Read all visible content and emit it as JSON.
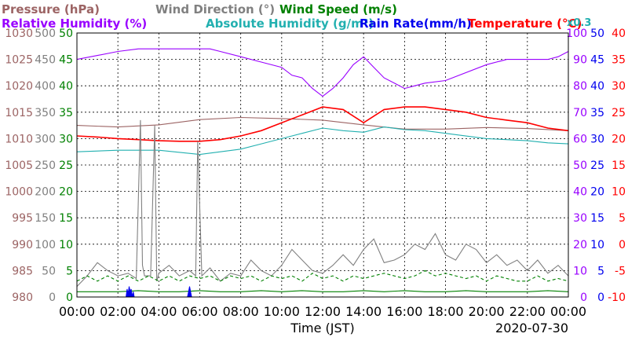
{
  "chart_data": {
    "type": "line",
    "date_label": "2020-07-30",
    "xlabel": "Time (JST)",
    "x_ticks": [
      "00:00",
      "02:00",
      "04:00",
      "06:00",
      "08:00",
      "10:00",
      "12:00",
      "14:00",
      "16:00",
      "18:00",
      "20:00",
      "22:00",
      "00:00"
    ],
    "axes": {
      "pressure": {
        "label": "Pressure (hPa)",
        "color": "#9c6464",
        "range": [
          980,
          1030
        ],
        "ticks": [
          "980",
          "985",
          "990",
          "995",
          "1000",
          "1005",
          "1010",
          "1015",
          "1020",
          "1025",
          "1030"
        ]
      },
      "wind_dir": {
        "label": "Wind Direction (°)",
        "color": "#808080",
        "range": [
          0,
          500
        ],
        "ticks": [
          "0",
          "50",
          "100",
          "150",
          "200",
          "250",
          "300",
          "350",
          "400",
          "450",
          "500"
        ]
      },
      "wind_speed": {
        "label": "Wind Speed (m/s)",
        "color": "#008000",
        "range": [
          0,
          50
        ],
        "ticks": [
          "0",
          "5",
          "10",
          "15",
          "20",
          "25",
          "30",
          "35",
          "40",
          "45",
          "50"
        ]
      },
      "humidity": {
        "label": "Relative Humidity (%)",
        "color": "#9900ff",
        "range": [
          0,
          100
        ],
        "ticks": [
          "0",
          "10",
          "20",
          "30",
          "40",
          "50",
          "60",
          "70",
          "80",
          "90",
          "100"
        ]
      },
      "abs_humidity": {
        "label": "Absolute Humidity (g/m³)",
        "color": "#22b0b0",
        "scale_note": "x0.3",
        "range": [
          0,
          50
        ]
      },
      "rain_rate": {
        "label": "Rain Rate(mm/h)",
        "color": "#0000ee",
        "range": [
          0,
          50
        ],
        "ticks": [
          "0",
          "5",
          "10",
          "15",
          "20",
          "25",
          "30",
          "35",
          "40",
          "45",
          "50"
        ]
      },
      "temperature": {
        "label": "Temperature (°C)",
        "color": "#ff0000",
        "range": [
          -10,
          40
        ],
        "ticks": [
          "-10",
          "-5",
          "0",
          "5",
          "10",
          "15",
          "20",
          "25",
          "30",
          "35",
          "40"
        ]
      }
    },
    "grid": true,
    "series": [
      {
        "name": "Pressure (hPa)",
        "axis": "pressure",
        "x": [
          0,
          2,
          4,
          6,
          8,
          10,
          12,
          14,
          16,
          18,
          20,
          22,
          24
        ],
        "y": [
          1012.5,
          1012.2,
          1012.6,
          1013.6,
          1014.0,
          1013.8,
          1013.5,
          1012.6,
          1011.8,
          1011.8,
          1012.1,
          1011.9,
          1011.5
        ]
      },
      {
        "name": "Relative Humidity (%)",
        "axis": "humidity",
        "x": [
          0,
          1,
          2,
          3,
          4,
          5,
          6,
          6.5,
          7,
          8,
          9,
          10,
          10.5,
          11,
          11.5,
          12,
          12.5,
          13,
          13.5,
          14,
          14.5,
          15,
          15.5,
          16,
          16.5,
          17,
          18,
          20,
          21,
          22,
          23,
          23.5,
          24
        ],
        "y": [
          90,
          91.5,
          93,
          94,
          94,
          94,
          94,
          94,
          93,
          91,
          89,
          87,
          84,
          83,
          79,
          76,
          79,
          83,
          88,
          91,
          87,
          83,
          81,
          79,
          80,
          81,
          82,
          88,
          90,
          90,
          90,
          91,
          93
        ]
      },
      {
        "name": "Temperature (°C)",
        "axis": "temperature",
        "x": [
          0,
          1,
          2,
          3,
          4,
          5,
          6,
          7,
          8,
          9,
          10,
          11,
          12,
          13,
          14,
          15,
          16,
          17,
          18,
          19,
          20,
          21,
          22,
          23,
          24
        ],
        "y": [
          20.5,
          20.3,
          20.0,
          19.8,
          19.6,
          19.5,
          19.5,
          19.8,
          20.5,
          21.5,
          23.0,
          24.5,
          26.0,
          25.5,
          23.0,
          25.5,
          26.0,
          26.0,
          25.5,
          25.0,
          24.0,
          23.5,
          23.0,
          22.0,
          21.5
        ]
      },
      {
        "name": "Absolute Humidity (g/m³)",
        "axis": "abs_humidity",
        "x": [
          0,
          2,
          4,
          6,
          7,
          8,
          9,
          10,
          11,
          12,
          13,
          14,
          15,
          16,
          17,
          18,
          20,
          22,
          23,
          24
        ],
        "y": [
          27.5,
          27.8,
          27.8,
          27.0,
          27.5,
          28.0,
          29.0,
          30.0,
          31.0,
          32.0,
          31.5,
          31.2,
          32.2,
          31.7,
          31.5,
          31.0,
          30.0,
          29.6,
          29.2,
          29.0
        ]
      },
      {
        "name": "Wind Direction (°)",
        "axis": "wind_dir",
        "x": [
          0,
          0.5,
          1,
          1.5,
          2,
          2.5,
          2.9,
          3.1,
          3.2,
          3.3,
          3.6,
          3.8,
          3.9,
          4.0,
          4.5,
          5,
          5.5,
          5.8,
          5.9,
          6.1,
          6.5,
          7,
          7.5,
          8,
          8.5,
          9,
          9.5,
          10,
          10.5,
          11,
          11.5,
          12,
          12.5,
          13,
          13.5,
          14,
          14.5,
          15,
          15.5,
          16,
          16.5,
          17,
          17.5,
          18,
          18.5,
          19,
          19.5,
          20,
          20.5,
          21,
          21.5,
          22,
          22.5,
          23,
          23.5,
          24
        ],
        "y": [
          20,
          40,
          65,
          50,
          40,
          45,
          35,
          335,
          60,
          40,
          40,
          325,
          30,
          45,
          60,
          40,
          50,
          40,
          295,
          40,
          55,
          30,
          45,
          40,
          70,
          50,
          40,
          60,
          90,
          70,
          50,
          45,
          60,
          80,
          60,
          90,
          110,
          65,
          70,
          80,
          100,
          90,
          120,
          80,
          70,
          100,
          90,
          65,
          80,
          60,
          70,
          50,
          70,
          45,
          60,
          40
        ]
      },
      {
        "name": "Wind Speed (m/s) max",
        "axis": "wind_speed",
        "x": [
          0,
          0.5,
          1,
          1.5,
          2,
          2.5,
          3,
          3.5,
          4,
          4.5,
          5,
          5.5,
          6,
          6.5,
          7,
          7.5,
          8,
          8.5,
          9,
          9.5,
          10,
          10.5,
          11,
          11.5,
          12,
          12.5,
          13,
          13.5,
          14,
          14.5,
          15,
          15.5,
          16,
          16.5,
          17,
          17.5,
          18,
          18.5,
          19,
          19.5,
          20,
          20.5,
          21,
          21.5,
          22,
          22.5,
          23,
          23.5,
          24
        ],
        "y": [
          3,
          4,
          3,
          4,
          3,
          4,
          3,
          4,
          3,
          4,
          3,
          4,
          3.5,
          4,
          3,
          4,
          3.5,
          4,
          3,
          4,
          3.5,
          4,
          3,
          4.5,
          3.5,
          4,
          3,
          4,
          3.5,
          4,
          4.5,
          4,
          3.5,
          4,
          5,
          4,
          4.5,
          4,
          3.5,
          4,
          3,
          4,
          3.5,
          3,
          3,
          4,
          3,
          3.5,
          3
        ]
      },
      {
        "name": "Wind Speed (m/s) avg",
        "axis": "wind_speed",
        "x": [
          0,
          1,
          2,
          3,
          4,
          5,
          6,
          7,
          8,
          9,
          10,
          11,
          12,
          13,
          14,
          15,
          16,
          17,
          18,
          19,
          20,
          21,
          22,
          23,
          24
        ],
        "y": [
          1,
          1,
          1,
          1.2,
          1,
          1,
          1.2,
          1,
          1,
          1.2,
          1,
          1.2,
          1,
          1,
          1.2,
          1,
          1.2,
          1,
          1,
          1.2,
          1,
          1,
          1,
          1.2,
          1
        ]
      },
      {
        "name": "Rain Rate(mm/h)",
        "axis": "rain_rate",
        "x": [
          2.4,
          2.45,
          2.5,
          2.55,
          2.6,
          2.65,
          2.7,
          2.75,
          2.8,
          5.4,
          5.45,
          5.5,
          5.55,
          5.6
        ],
        "y": [
          0,
          1.5,
          0.5,
          2,
          1,
          1.5,
          0,
          1,
          0,
          0,
          1,
          2,
          1,
          0
        ]
      }
    ]
  }
}
